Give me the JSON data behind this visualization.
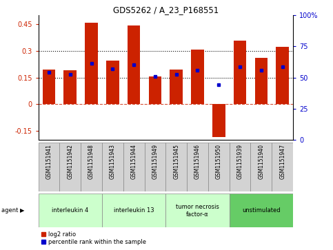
{
  "title": "GDS5262 / A_23_P168551",
  "samples": [
    "GSM1151941",
    "GSM1151942",
    "GSM1151948",
    "GSM1151943",
    "GSM1151944",
    "GSM1151949",
    "GSM1151945",
    "GSM1151946",
    "GSM1151950",
    "GSM1151939",
    "GSM1151940",
    "GSM1151947"
  ],
  "log2_ratio": [
    0.195,
    0.19,
    0.455,
    0.245,
    0.44,
    0.155,
    0.195,
    0.305,
    -0.185,
    0.355,
    0.26,
    0.32
  ],
  "percentile": [
    55,
    53,
    63,
    58,
    62,
    51,
    53,
    57,
    43,
    60,
    57,
    60
  ],
  "agents": [
    {
      "label": "interleukin 4",
      "start": 0,
      "end": 3,
      "color": "#ccffcc"
    },
    {
      "label": "interleukin 13",
      "start": 3,
      "end": 6,
      "color": "#ccffcc"
    },
    {
      "label": "tumor necrosis\nfactor-α",
      "start": 6,
      "end": 9,
      "color": "#ccffcc"
    },
    {
      "label": "unstimulated",
      "start": 9,
      "end": 12,
      "color": "#66cc66"
    }
  ],
  "ylim_left": [
    -0.2,
    0.5
  ],
  "ylim_right": [
    0,
    100
  ],
  "yticks_left": [
    -0.15,
    0.0,
    0.15,
    0.3,
    0.45
  ],
  "yticks_right": [
    0,
    25,
    50,
    75,
    100
  ],
  "bar_color": "#cc2200",
  "dot_color": "#0000cc",
  "hline_y": [
    0.15,
    0.3
  ],
  "background_color": "#ffffff"
}
